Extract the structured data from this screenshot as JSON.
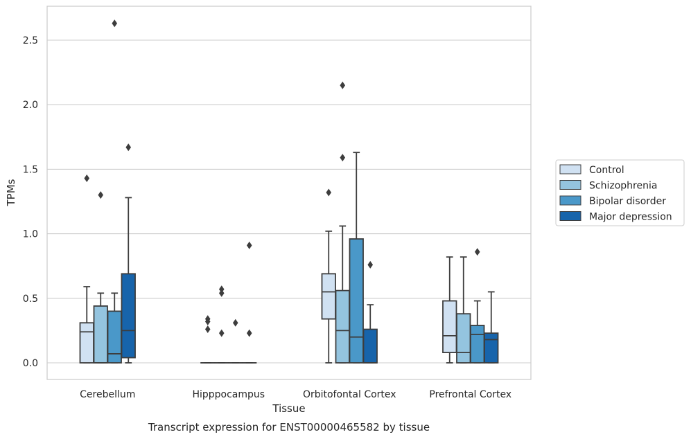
{
  "chart_data": {
    "type": "box",
    "xlabel": "Tissue",
    "ylabel": "TPMs",
    "caption": "Transcript expression for ENST00000465582 by tissue",
    "ylim": [
      -0.13,
      2.77
    ],
    "yticks": [
      0.0,
      0.5,
      1.0,
      1.5,
      2.0,
      2.5
    ],
    "ytick_labels": [
      "0.0",
      "0.5",
      "1.0",
      "1.5",
      "2.0",
      "2.5"
    ],
    "grid": "horizontal",
    "legend_position": "right",
    "categories": [
      "Cerebellum",
      "Hipppocampus",
      "Orbitofontal Cortex",
      "Prefrontal Cortex"
    ],
    "series": [
      {
        "name": "Control",
        "color": "#d0e1f2",
        "boxes": [
          {
            "whislo": 0.0,
            "q1": 0.0,
            "med": 0.24,
            "q3": 0.31,
            "whishi": 0.59,
            "fliers": [
              1.43
            ]
          },
          {
            "whislo": 0.0,
            "q1": 0.0,
            "med": 0.0,
            "q3": 0.0,
            "whishi": 0.0,
            "fliers": [
              0.26,
              0.32,
              0.34
            ]
          },
          {
            "whislo": 0.0,
            "q1": 0.34,
            "med": 0.55,
            "q3": 0.69,
            "whishi": 1.02,
            "fliers": [
              1.32
            ]
          },
          {
            "whislo": 0.0,
            "q1": 0.08,
            "med": 0.21,
            "q3": 0.48,
            "whishi": 0.82,
            "fliers": []
          }
        ]
      },
      {
        "name": "Schizophrenia",
        "color": "#94c4df",
        "boxes": [
          {
            "whislo": 0.0,
            "q1": 0.0,
            "med": 0.0,
            "q3": 0.44,
            "whishi": 0.54,
            "fliers": [
              1.3
            ]
          },
          {
            "whislo": 0.0,
            "q1": 0.0,
            "med": 0.0,
            "q3": 0.0,
            "whishi": 0.0,
            "fliers": [
              0.23,
              0.54,
              0.57
            ]
          },
          {
            "whislo": 0.0,
            "q1": 0.0,
            "med": 0.25,
            "q3": 0.56,
            "whishi": 1.06,
            "fliers": [
              1.59,
              2.15
            ]
          },
          {
            "whislo": 0.0,
            "q1": 0.0,
            "med": 0.08,
            "q3": 0.38,
            "whishi": 0.82,
            "fliers": []
          }
        ]
      },
      {
        "name": "Bipolar disorder",
        "color": "#4a98c9",
        "boxes": [
          {
            "whislo": 0.0,
            "q1": 0.0,
            "med": 0.07,
            "q3": 0.4,
            "whishi": 0.54,
            "fliers": [
              2.63
            ]
          },
          {
            "whislo": 0.0,
            "q1": 0.0,
            "med": 0.0,
            "q3": 0.0,
            "whishi": 0.0,
            "fliers": [
              0.31
            ]
          },
          {
            "whislo": 0.0,
            "q1": 0.0,
            "med": 0.2,
            "q3": 0.96,
            "whishi": 1.63,
            "fliers": []
          },
          {
            "whislo": 0.0,
            "q1": 0.0,
            "med": 0.22,
            "q3": 0.29,
            "whishi": 0.48,
            "fliers": [
              0.86
            ]
          }
        ]
      },
      {
        "name": "Major depression",
        "color": "#1764ab",
        "boxes": [
          {
            "whislo": 0.0,
            "q1": 0.04,
            "med": 0.25,
            "q3": 0.69,
            "whishi": 1.28,
            "fliers": [
              1.67
            ]
          },
          {
            "whislo": 0.0,
            "q1": 0.0,
            "med": 0.0,
            "q3": 0.0,
            "whishi": 0.0,
            "fliers": [
              0.23,
              0.91
            ]
          },
          {
            "whislo": 0.0,
            "q1": 0.0,
            "med": 0.0,
            "q3": 0.26,
            "whishi": 0.45,
            "fliers": [
              0.76
            ]
          },
          {
            "whislo": 0.0,
            "q1": 0.0,
            "med": 0.18,
            "q3": 0.23,
            "whishi": 0.55,
            "fliers": []
          }
        ]
      }
    ]
  }
}
